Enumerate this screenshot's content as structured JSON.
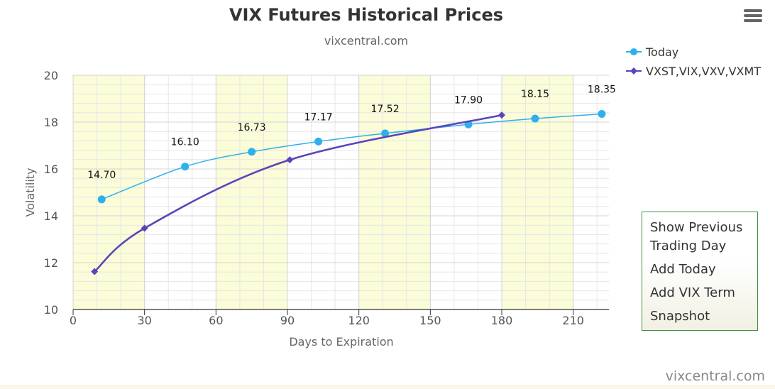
{
  "chart_data": {
    "type": "line",
    "title": "VIX Futures Historical Prices",
    "subtitle": "vixcentral.com",
    "xlabel": "Days to Expiration",
    "ylabel": "Volatility",
    "xlim": [
      0,
      225
    ],
    "ylim": [
      10,
      20
    ],
    "x_ticks": [
      0,
      30,
      60,
      90,
      120,
      150,
      180,
      210
    ],
    "y_ticks": [
      10,
      12,
      14,
      16,
      18,
      20
    ],
    "grid": true,
    "band_color": "#fbfcd8",
    "legend_position": "top-right",
    "series": [
      {
        "name": "Today",
        "color": "#2fb0ee",
        "marker": "circle",
        "x": [
          12,
          47,
          75,
          103,
          131,
          166,
          194,
          222
        ],
        "y": [
          14.7,
          16.1,
          16.73,
          17.17,
          17.52,
          17.9,
          18.15,
          18.35
        ],
        "labels": [
          "14.70",
          "16.10",
          "16.73",
          "17.17",
          "17.52",
          "17.90",
          "18.15",
          "18.35"
        ]
      },
      {
        "name": "VXST,VIX,VXV,VXMT",
        "color": "#5b45b8",
        "marker": "diamond",
        "x": [
          9,
          30,
          91,
          180
        ],
        "y": [
          11.62,
          13.47,
          16.39,
          18.3
        ]
      }
    ]
  },
  "menu": {
    "icon": "hamburger-icon",
    "items": [
      "Show Previous",
      "Trading Day",
      "Add Today",
      "Add VIX Term",
      "Snapshot"
    ]
  },
  "credit": "vixcentral.com"
}
